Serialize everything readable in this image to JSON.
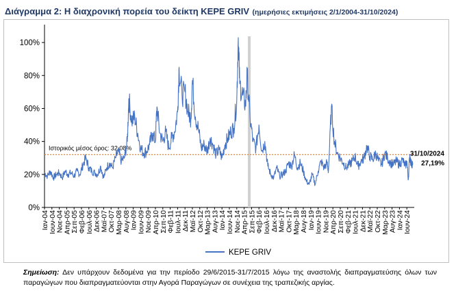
{
  "header": {
    "title": "Διάγραμμα 2: Η διαχρονική πορεία του δείκτη ΚΕΡΕ GRIV",
    "subtitle": "(ημερήσιες εκτιμήσεις 2/1/2004-31/10/2024)"
  },
  "note": {
    "label": "Σημείωση:",
    "text": "Δεν υπάρχουν δεδομένα για την περίοδο 29/6/2015-31/7/2015 λόγω της αναστολής διαπραγματεύσης όλων των παραγώγων που διαπραγματεύονται στην Αγορά Παραγώγων σε συνέχεια της τραπεζικής αργίας."
  },
  "chart_data": {
    "type": "line",
    "title": "",
    "xlabel": "",
    "ylabel": "",
    "ylim": [
      0,
      110
    ],
    "yticks": [
      "0%",
      "20%",
      "40%",
      "60%",
      "80%",
      "100%"
    ],
    "x_tick_labels": [
      "Ιαν-04",
      "Ιουν-04",
      "Νοε-04",
      "Απρ-05",
      "Σεπ-05",
      "Φεβ-06",
      "Ιουλ-06",
      "Δεκ-06",
      "Μαϊ-07",
      "Οκτ-07",
      "Μαρ-08",
      "Αυγ-08",
      "Ιαν-09",
      "Ιουν-09",
      "Νοε-09",
      "Απρ-10",
      "Σεπ-10",
      "Φεβ-11",
      "Ιουλ-11",
      "Δεκ-11",
      "Μαϊ-12",
      "Οκτ-12",
      "Μαρ-13",
      "Αυγ-13",
      "Ιαν-14",
      "Ιουν-14",
      "Νοε-14",
      "Απρ-15",
      "Σεπ-15",
      "Φεβ-16",
      "Ιουλ-16",
      "Δεκ-16",
      "Μαϊ-17",
      "Οκτ-17",
      "Μαρ-18",
      "Αυγ-18",
      "Ιαν-19",
      "Ιουν-19",
      "Νοε-19",
      "Απρ-20",
      "Σεπ-20",
      "Φεβ-21",
      "Ιουλ-21",
      "Δεκ-21",
      "Μαϊ-22",
      "Οκτ-22",
      "Μαρ-23",
      "Αυγ-23",
      "Ιαν-24",
      "Ιουν-24"
    ],
    "series": [
      {
        "name": "ΚΕΡΕ GRIV",
        "color": "#4472c4",
        "points": [
          [
            "2004-01",
            21
          ],
          [
            "2004-03",
            19
          ],
          [
            "2004-05",
            22
          ],
          [
            "2004-07",
            18
          ],
          [
            "2004-09",
            20
          ],
          [
            "2004-11",
            21
          ],
          [
            "2005-01",
            18
          ],
          [
            "2005-03",
            22
          ],
          [
            "2005-05",
            20
          ],
          [
            "2005-07",
            21
          ],
          [
            "2005-09",
            19
          ],
          [
            "2005-11",
            22
          ],
          [
            "2006-01",
            20
          ],
          [
            "2006-03",
            26
          ],
          [
            "2006-05",
            30
          ],
          [
            "2006-07",
            24
          ],
          [
            "2006-09",
            22
          ],
          [
            "2006-11",
            21
          ],
          [
            "2007-01",
            20
          ],
          [
            "2007-03",
            25
          ],
          [
            "2007-05",
            18
          ],
          [
            "2007-07",
            24
          ],
          [
            "2007-09",
            27
          ],
          [
            "2007-11",
            24
          ],
          [
            "2008-01",
            30
          ],
          [
            "2008-03",
            34
          ],
          [
            "2008-05",
            28
          ],
          [
            "2008-07",
            30
          ],
          [
            "2008-09",
            40
          ],
          [
            "2008-10",
            66
          ],
          [
            "2008-12",
            52
          ],
          [
            "2009-02",
            55
          ],
          [
            "2009-04",
            45
          ],
          [
            "2009-06",
            36
          ],
          [
            "2009-08",
            33
          ],
          [
            "2009-10",
            34
          ],
          [
            "2009-12",
            38
          ],
          [
            "2010-02",
            45
          ],
          [
            "2010-04",
            40
          ],
          [
            "2010-05",
            61
          ],
          [
            "2010-07",
            45
          ],
          [
            "2010-09",
            40
          ],
          [
            "2010-11",
            46
          ],
          [
            "2011-01",
            36
          ],
          [
            "2011-03",
            42
          ],
          [
            "2011-05",
            46
          ],
          [
            "2011-07",
            58
          ],
          [
            "2011-08",
            85
          ],
          [
            "2011-10",
            68
          ],
          [
            "2011-12",
            70
          ],
          [
            "2012-02",
            58
          ],
          [
            "2012-04",
            54
          ],
          [
            "2012-05",
            77
          ],
          [
            "2012-07",
            55
          ],
          [
            "2012-09",
            48
          ],
          [
            "2012-11",
            36
          ],
          [
            "2013-01",
            38
          ],
          [
            "2013-03",
            34
          ],
          [
            "2013-05",
            42
          ],
          [
            "2013-07",
            38
          ],
          [
            "2013-09",
            32
          ],
          [
            "2013-11",
            35
          ],
          [
            "2014-01",
            30
          ],
          [
            "2014-03",
            38
          ],
          [
            "2014-05",
            42
          ],
          [
            "2014-07",
            46
          ],
          [
            "2014-09",
            48
          ],
          [
            "2014-11",
            65
          ],
          [
            "2014-12",
            103
          ],
          [
            "2015-01",
            75
          ],
          [
            "2015-03",
            68
          ],
          [
            "2015-05",
            62
          ],
          [
            "2015-06",
            80
          ],
          [
            "2015-08",
            54
          ],
          [
            "2015-10",
            40
          ],
          [
            "2015-12",
            36
          ],
          [
            "2016-02",
            50
          ],
          [
            "2016-04",
            34
          ],
          [
            "2016-06",
            40
          ],
          [
            "2016-08",
            25
          ],
          [
            "2016-10",
            20
          ],
          [
            "2016-12",
            18
          ],
          [
            "2017-02",
            24
          ],
          [
            "2017-04",
            19
          ],
          [
            "2017-06",
            20
          ],
          [
            "2017-08",
            22
          ],
          [
            "2017-10",
            27
          ],
          [
            "2017-12",
            25
          ],
          [
            "2018-02",
            32
          ],
          [
            "2018-04",
            24
          ],
          [
            "2018-06",
            27
          ],
          [
            "2018-08",
            22
          ],
          [
            "2018-10",
            16
          ],
          [
            "2018-12",
            14
          ],
          [
            "2019-02",
            20
          ],
          [
            "2019-04",
            14
          ],
          [
            "2019-06",
            22
          ],
          [
            "2019-08",
            28
          ],
          [
            "2019-10",
            24
          ],
          [
            "2019-12",
            27
          ],
          [
            "2020-01",
            22
          ],
          [
            "2020-03",
            61
          ],
          [
            "2020-05",
            40
          ],
          [
            "2020-07",
            33
          ],
          [
            "2020-09",
            30
          ],
          [
            "2020-11",
            27
          ],
          [
            "2021-01",
            24
          ],
          [
            "2021-03",
            26
          ],
          [
            "2021-05",
            28
          ],
          [
            "2021-07",
            31
          ],
          [
            "2021-09",
            25
          ],
          [
            "2021-11",
            28
          ],
          [
            "2022-01",
            30
          ],
          [
            "2022-03",
            37
          ],
          [
            "2022-05",
            31
          ],
          [
            "2022-07",
            29
          ],
          [
            "2022-09",
            33
          ],
          [
            "2022-11",
            28
          ],
          [
            "2023-01",
            26
          ],
          [
            "2023-03",
            33
          ],
          [
            "2023-05",
            30
          ],
          [
            "2023-07",
            27
          ],
          [
            "2023-09",
            26
          ],
          [
            "2023-11",
            28
          ],
          [
            "2024-01",
            26
          ],
          [
            "2024-03",
            29
          ],
          [
            "2024-05",
            25
          ],
          [
            "2024-06",
            28
          ],
          [
            "2024-07",
            17
          ],
          [
            "2024-08",
            32
          ],
          [
            "2024-09",
            26
          ],
          [
            "2024-10",
            27.19
          ]
        ]
      }
    ],
    "reference_line": {
      "value": 32.08,
      "label": "Ιστορικός μέσος όρος: 32,08%",
      "color": "#ed7d31"
    },
    "gap": {
      "label_period": "29/6/2015-31/7/2015"
    },
    "end_annotation": {
      "date": "31/10/2024",
      "value": "27,19%"
    },
    "legend": {
      "position": "bottom",
      "entries": [
        "ΚΕΡΕ GRIV"
      ]
    },
    "grid": false
  }
}
